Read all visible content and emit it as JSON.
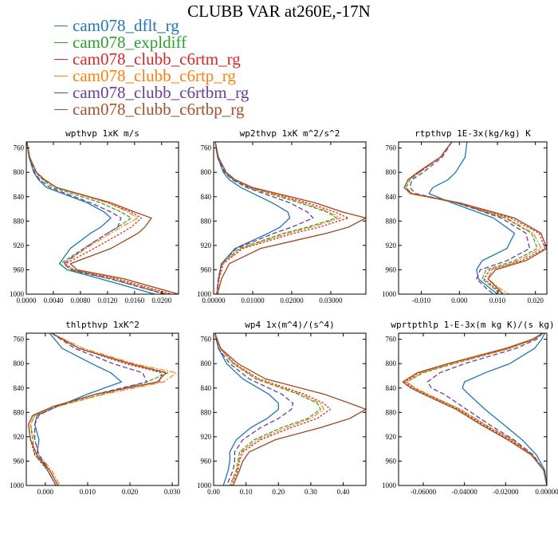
{
  "title": "CLUBB VAR at260E,-17N",
  "legend": [
    {
      "name": "cam078_dflt_rg",
      "color": "#1f77b4"
    },
    {
      "name": "cam078_expldiff",
      "color": "#2ca02c"
    },
    {
      "name": "cam078_clubb_c6rtm_rg",
      "color": "#d62728"
    },
    {
      "name": "cam078_clubb_c6rtp_rg",
      "color": "#ff7f0e"
    },
    {
      "name": "cam078_clubb_c6rtbm_rg",
      "color": "#6a3d9a"
    },
    {
      "name": "cam078_clubb_c6rtbp_rg",
      "color": "#a0522d"
    }
  ],
  "chart_data": [
    {
      "type": "line",
      "title": "wpthvp  1xK m/s",
      "xlim": [
        0,
        0.0225
      ],
      "ylim": [
        1000,
        750
      ],
      "xticks": [
        0,
        0.004,
        0.008,
        0.012,
        0.016,
        0.02
      ],
      "xtick_labels": [
        "0.0000",
        "0.0040",
        "0.0080",
        "0.0120",
        "0.0160",
        "0.0200"
      ],
      "yticks": [
        760,
        800,
        840,
        880,
        920,
        960,
        1000
      ],
      "ytick_labels": [
        "760",
        "800",
        "840",
        "880",
        "920",
        "960",
        "1000"
      ],
      "y": [
        750,
        775,
        800,
        812,
        825,
        850,
        865,
        875,
        890,
        900,
        925,
        950,
        960,
        975,
        1000
      ],
      "series": [
        {
          "values": [
            0.0001,
            0.0004,
            0.0011,
            0.0018,
            0.003,
            0.009,
            0.0115,
            0.0125,
            0.011,
            0.0095,
            0.0065,
            0.0049,
            0.006,
            0.011,
            0.019
          ]
        },
        {
          "values": [
            0.0001,
            0.0004,
            0.0014,
            0.0024,
            0.004,
            0.011,
            0.014,
            0.0155,
            0.0135,
            0.012,
            0.0085,
            0.005,
            0.006,
            0.0125,
            0.0205
          ]
        },
        {
          "values": [
            0.0001,
            0.0005,
            0.0015,
            0.0026,
            0.0045,
            0.012,
            0.0155,
            0.017,
            0.0155,
            0.014,
            0.01,
            0.0058,
            0.007,
            0.0135,
            0.0215
          ]
        },
        {
          "values": [
            0.0001,
            0.0005,
            0.0015,
            0.0026,
            0.0045,
            0.012,
            0.015,
            0.0165,
            0.014,
            0.0125,
            0.0088,
            0.0056,
            0.0068,
            0.013,
            0.021
          ]
        },
        {
          "values": [
            0.0001,
            0.0004,
            0.0012,
            0.002,
            0.0035,
            0.0095,
            0.0125,
            0.014,
            0.0135,
            0.012,
            0.0085,
            0.0055,
            0.0066,
            0.0125,
            0.0205
          ]
        },
        {
          "values": [
            0.0001,
            0.0005,
            0.0015,
            0.0027,
            0.0045,
            0.0125,
            0.016,
            0.0185,
            0.0175,
            0.0165,
            0.0125,
            0.0065,
            0.0075,
            0.0145,
            0.0225
          ]
        }
      ]
    },
    {
      "type": "line",
      "title": "wp2thvp  1xK m^2/s^2",
      "xlim": [
        0,
        0.039
      ],
      "ylim": [
        1000,
        750
      ],
      "xticks": [
        0,
        0.01,
        0.02,
        0.03
      ],
      "xtick_labels": [
        "0.00000",
        "0.01000",
        "0.02000",
        "0.03000"
      ],
      "yticks": [
        760,
        800,
        840,
        880,
        920,
        960,
        1000
      ],
      "ytick_labels": [
        "760",
        "800",
        "840",
        "880",
        "920",
        "960",
        "1000"
      ],
      "y": [
        750,
        775,
        800,
        812,
        825,
        850,
        865,
        875,
        890,
        900,
        925,
        950,
        975,
        1000
      ],
      "series": [
        {
          "values": [
            0.0004,
            0.001,
            0.0025,
            0.004,
            0.007,
            0.015,
            0.019,
            0.0195,
            0.017,
            0.014,
            0.0055,
            0.002,
            0.0012,
            0.0008
          ]
        },
        {
          "values": [
            0.0004,
            0.0012,
            0.003,
            0.005,
            0.009,
            0.022,
            0.029,
            0.0315,
            0.024,
            0.018,
            0.0065,
            0.0022,
            0.0013,
            0.0008
          ]
        },
        {
          "values": [
            0.0004,
            0.0012,
            0.0032,
            0.0055,
            0.0095,
            0.024,
            0.031,
            0.0345,
            0.027,
            0.0205,
            0.0075,
            0.0025,
            0.0014,
            0.0009
          ]
        },
        {
          "values": [
            0.0004,
            0.0012,
            0.0032,
            0.0055,
            0.0095,
            0.023,
            0.0295,
            0.0325,
            0.025,
            0.019,
            0.007,
            0.0023,
            0.0013,
            0.0008
          ]
        },
        {
          "values": [
            0.0004,
            0.001,
            0.0028,
            0.0048,
            0.0085,
            0.0195,
            0.024,
            0.0255,
            0.02,
            0.0155,
            0.0058,
            0.002,
            0.0012,
            0.0008
          ]
        },
        {
          "values": [
            0.0004,
            0.0012,
            0.0032,
            0.0055,
            0.01,
            0.026,
            0.033,
            0.039,
            0.0345,
            0.029,
            0.012,
            0.004,
            0.002,
            0.001
          ]
        }
      ]
    },
    {
      "type": "line",
      "title": "rtpthvp  1E-3x(kg/kg) K",
      "xlim": [
        -0.016,
        0.023
      ],
      "ylim": [
        1000,
        750
      ],
      "xticks": [
        -0.01,
        0,
        0.01,
        0.02
      ],
      "xtick_labels": [
        "-0.010",
        "0.000",
        "0.010",
        "0.020"
      ],
      "yticks": [
        760,
        800,
        840,
        880,
        920,
        960,
        1000
      ],
      "ytick_labels": [
        "760",
        "800",
        "840",
        "880",
        "920",
        "960",
        "1000"
      ],
      "y": [
        750,
        775,
        800,
        812,
        825,
        835,
        850,
        875,
        900,
        925,
        945,
        960,
        975,
        990,
        1000
      ],
      "series": [
        {
          "values": [
            0.002,
            0.0015,
            -0.001,
            -0.003,
            -0.007,
            -0.008,
            -0.002,
            0.009,
            0.0145,
            0.0125,
            0.006,
            0.0045,
            0.005,
            0.008,
            0.01
          ]
        },
        {
          "values": [
            -0.002,
            -0.005,
            -0.0105,
            -0.013,
            -0.014,
            -0.0125,
            -0.001,
            0.012,
            0.019,
            0.0205,
            0.0145,
            0.007,
            0.006,
            0.009,
            0.011
          ]
        },
        {
          "values": [
            -0.002,
            -0.005,
            -0.0105,
            -0.0135,
            -0.0145,
            -0.013,
            -0.0005,
            0.0135,
            0.021,
            0.0225,
            0.0165,
            0.008,
            0.0065,
            0.0095,
            0.0115
          ]
        },
        {
          "values": [
            -0.002,
            -0.005,
            -0.011,
            -0.0135,
            -0.0145,
            -0.013,
            -0.0005,
            0.0125,
            0.0195,
            0.0215,
            0.0155,
            0.0085,
            0.0075,
            0.0105,
            0.013
          ]
        },
        {
          "values": [
            -0.002,
            -0.0045,
            -0.0095,
            -0.0125,
            -0.013,
            -0.0115,
            -0.0005,
            0.011,
            0.0175,
            0.0185,
            0.0125,
            0.0055,
            0.0045,
            0.007,
            0.009
          ]
        },
        {
          "values": [
            -0.002,
            -0.005,
            -0.011,
            -0.0135,
            -0.0145,
            -0.0125,
            0,
            0.0145,
            0.0215,
            0.023,
            0.0175,
            0.0095,
            0.0075,
            0.01,
            0.0115
          ]
        }
      ]
    },
    {
      "type": "line",
      "title": "thlpthvp  1xK^2",
      "xlim": [
        -0.0045,
        0.0315
      ],
      "ylim": [
        1000,
        750
      ],
      "xticks": [
        0,
        0.01,
        0.02,
        0.03
      ],
      "xtick_labels": [
        "0.000",
        "0.010",
        "0.020",
        "0.030"
      ],
      "yticks": [
        760,
        800,
        840,
        880,
        920,
        960,
        1000
      ],
      "ytick_labels": [
        "760",
        "800",
        "840",
        "880",
        "920",
        "960",
        "1000"
      ],
      "y": [
        750,
        775,
        800,
        815,
        830,
        850,
        870,
        885,
        900,
        925,
        950,
        975,
        1000
      ],
      "series": [
        {
          "values": [
            0.001,
            0.004,
            0.011,
            0.0155,
            0.018,
            0.01,
            0.003,
            -0.002,
            -0.0025,
            -0.0015,
            -0.002,
            0.0005,
            0.0025
          ]
        },
        {
          "values": [
            0.0015,
            0.008,
            0.02,
            0.029,
            0.024,
            0.0135,
            0.003,
            -0.0025,
            -0.0035,
            -0.003,
            -0.0025,
            0.001,
            0.003
          ]
        },
        {
          "values": [
            0.0015,
            0.008,
            0.019,
            0.0275,
            0.027,
            0.012,
            0.002,
            -0.003,
            -0.004,
            -0.0035,
            -0.0025,
            0.0005,
            0.0025
          ]
        },
        {
          "values": [
            0.0015,
            0.009,
            0.021,
            0.031,
            0.028,
            0.014,
            0.003,
            -0.0025,
            -0.0035,
            -0.0025,
            -0.0015,
            0.0015,
            0.0035
          ]
        },
        {
          "values": [
            0.0015,
            0.007,
            0.016,
            0.023,
            0.024,
            0.012,
            0.0025,
            -0.0015,
            -0.0025,
            -0.0025,
            -0.0015,
            0.001,
            0.003
          ]
        },
        {
          "values": [
            0.0015,
            0.008,
            0.02,
            0.0285,
            0.0265,
            0.012,
            0.002,
            -0.003,
            -0.004,
            -0.0035,
            -0.002,
            0.001,
            0.003
          ]
        }
      ]
    },
    {
      "type": "line",
      "title": "wp4  1x(m^4)/(s^4)",
      "xlim": [
        0,
        0.47
      ],
      "ylim": [
        1000,
        750
      ],
      "xticks": [
        0,
        0.1,
        0.2,
        0.3,
        0.4
      ],
      "xtick_labels": [
        "0.00",
        "0.10",
        "0.20",
        "0.30",
        "0.40"
      ],
      "yticks": [
        760,
        800,
        840,
        880,
        920,
        960,
        1000
      ],
      "ytick_labels": [
        "760",
        "800",
        "840",
        "880",
        "920",
        "960",
        "1000"
      ],
      "y": [
        750,
        775,
        800,
        825,
        850,
        865,
        875,
        890,
        905,
        925,
        945,
        960,
        975,
        1000
      ],
      "series": [
        {
          "values": [
            0.004,
            0.015,
            0.04,
            0.09,
            0.17,
            0.2,
            0.2,
            0.165,
            0.115,
            0.07,
            0.05,
            0.05,
            0.045,
            0.03
          ]
        },
        {
          "values": [
            0.004,
            0.02,
            0.06,
            0.13,
            0.26,
            0.32,
            0.33,
            0.29,
            0.21,
            0.125,
            0.08,
            0.075,
            0.07,
            0.05
          ]
        },
        {
          "values": [
            0.004,
            0.02,
            0.065,
            0.14,
            0.28,
            0.34,
            0.36,
            0.32,
            0.24,
            0.145,
            0.09,
            0.08,
            0.075,
            0.055
          ]
        },
        {
          "values": [
            0.004,
            0.02,
            0.062,
            0.135,
            0.27,
            0.33,
            0.34,
            0.3,
            0.225,
            0.135,
            0.085,
            0.078,
            0.072,
            0.05
          ]
        },
        {
          "values": [
            0.004,
            0.015,
            0.05,
            0.11,
            0.21,
            0.245,
            0.24,
            0.2,
            0.145,
            0.09,
            0.065,
            0.065,
            0.06,
            0.04
          ]
        },
        {
          "values": [
            0.004,
            0.022,
            0.075,
            0.16,
            0.34,
            0.42,
            0.47,
            0.42,
            0.33,
            0.19,
            0.11,
            0.09,
            0.08,
            0.06
          ]
        }
      ]
    },
    {
      "type": "line",
      "title": "wprtpthlp  1-E-3x(m kg K)/(s kg)",
      "xlim": [
        -0.072,
        0
      ],
      "ylim": [
        1000,
        750
      ],
      "xticks": [
        -0.06,
        -0.04,
        -0.02,
        0
      ],
      "xtick_labels": [
        "-0.06000",
        "-0.04000",
        "-0.02000",
        "0.00000"
      ],
      "yticks": [
        760,
        800,
        840,
        880,
        920,
        960,
        1000
      ],
      "ytick_labels": [
        "760",
        "800",
        "840",
        "880",
        "920",
        "960",
        "1000"
      ],
      "y": [
        750,
        760,
        775,
        800,
        815,
        830,
        840,
        850,
        875,
        900,
        925,
        950,
        975,
        1000
      ],
      "series": [
        {
          "values": [
            -0.001,
            -0.0025,
            -0.006,
            -0.018,
            -0.03,
            -0.04,
            -0.041,
            -0.038,
            -0.03,
            -0.021,
            -0.012,
            -0.005,
            -0.001,
            0
          ]
        },
        {
          "values": [
            -0.002,
            -0.006,
            -0.018,
            -0.045,
            -0.06,
            -0.068,
            -0.064,
            -0.058,
            -0.042,
            -0.03,
            -0.017,
            -0.007,
            -0.0015,
            0
          ]
        },
        {
          "values": [
            -0.002,
            -0.006,
            -0.019,
            -0.047,
            -0.062,
            -0.069,
            -0.065,
            -0.059,
            -0.043,
            -0.031,
            -0.018,
            -0.007,
            -0.0015,
            0
          ]
        },
        {
          "values": [
            -0.002,
            -0.006,
            -0.018,
            -0.046,
            -0.061,
            -0.068,
            -0.064,
            -0.058,
            -0.042,
            -0.03,
            -0.017,
            -0.007,
            -0.0015,
            0
          ]
        },
        {
          "values": [
            -0.002,
            -0.005,
            -0.015,
            -0.04,
            -0.052,
            -0.058,
            -0.056,
            -0.05,
            -0.039,
            -0.028,
            -0.016,
            -0.0065,
            -0.0015,
            0
          ]
        },
        {
          "values": [
            -0.002,
            -0.007,
            -0.02,
            -0.048,
            -0.063,
            -0.07,
            -0.066,
            -0.06,
            -0.044,
            -0.032,
            -0.019,
            -0.0075,
            -0.0015,
            0
          ]
        }
      ]
    }
  ]
}
